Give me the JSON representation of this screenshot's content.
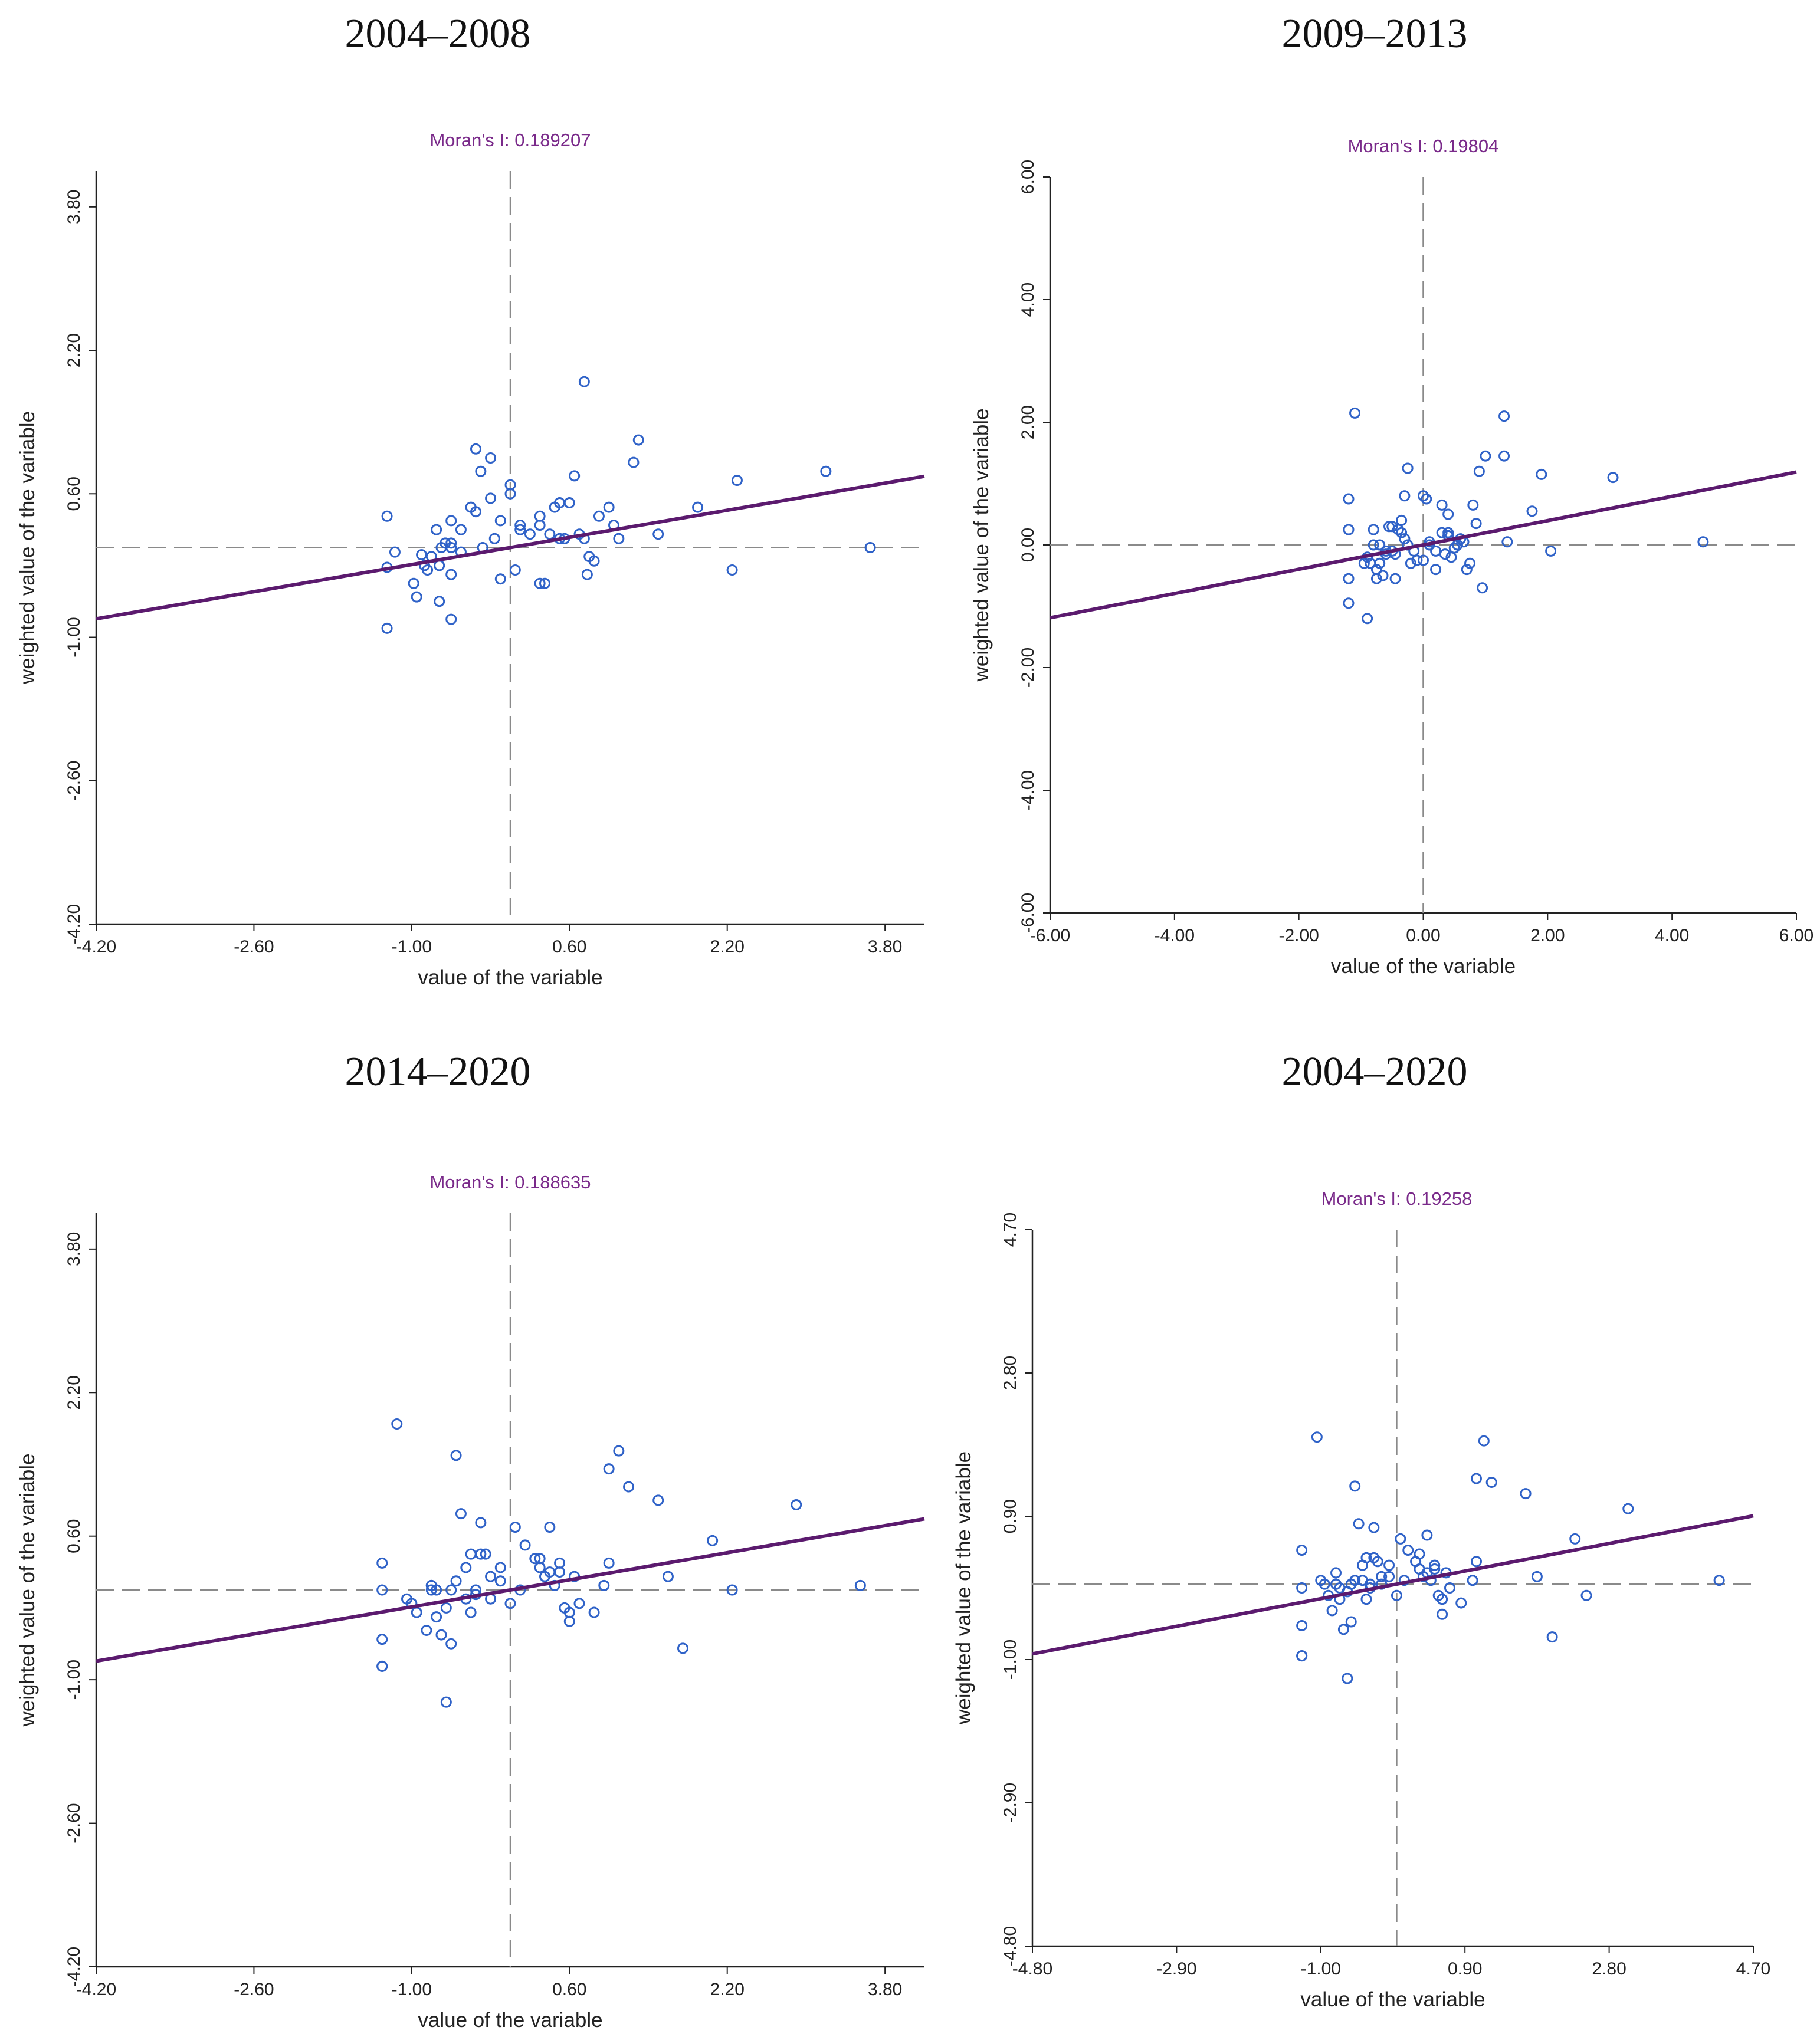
{
  "chart_data": [
    {
      "type": "scatter",
      "title": "2004–2008",
      "annotation": "Moran's I: 0.189207",
      "xlabel": "value of the variable",
      "ylabel": "weighted value of the variable",
      "xlim": [
        -4.2,
        4.2
      ],
      "ylim": [
        -4.2,
        4.2
      ],
      "xticks": [
        "-4.20",
        "-2.60",
        "-1.00",
        "0.60",
        "2.20",
        "3.80"
      ],
      "yticks": [
        "-4.20",
        "-2.60",
        "-1.00",
        "0.60",
        "2.20",
        "3.80"
      ],
      "slope": 0.189207,
      "colors": {
        "points": "#2f62c8",
        "fit": "#5b1a6e",
        "ref": "#8a8a8a"
      },
      "x": [
        -1.25,
        -0.98,
        -1.25,
        -1.25,
        -0.72,
        -1.17,
        -0.6,
        -0.9,
        -0.6,
        -0.84,
        -0.72,
        -0.6,
        -0.5,
        -0.75,
        -0.87,
        -0.5,
        -0.6,
        -0.7,
        -0.8,
        -0.95,
        -0.66,
        -0.6,
        -0.28,
        -0.16,
        -0.35,
        -0.1,
        -0.2,
        -0.0,
        0.2,
        0.1,
        0.3,
        0.1,
        0.05,
        0.4,
        0.3,
        0.5,
        0.55,
        0.45,
        0.7,
        0.6,
        0.75,
        0.78,
        0.8,
        0.85,
        0.9,
        1.0,
        1.05,
        1.1,
        0.75,
        1.5,
        1.9,
        2.3,
        2.25,
        3.2,
        3.65,
        0.5,
        1.25,
        1.3,
        -0.35,
        -0.2,
        -0.4,
        -0.3,
        0.0,
        0.3,
        -0.1,
        0.35,
        0.65
      ],
      "y": [
        -0.9,
        -0.4,
        -0.22,
        0.35,
        -0.6,
        -0.05,
        -0.8,
        -0.08,
        -0.3,
        -0.25,
        -0.2,
        0.0,
        -0.05,
        0.2,
        -0.2,
        0.2,
        0.3,
        0.0,
        -0.1,
        -0.55,
        0.05,
        0.05,
        0.0,
        0.1,
        0.4,
        0.3,
        0.55,
        0.6,
        0.15,
        0.25,
        0.25,
        0.2,
        -0.25,
        0.15,
        0.35,
        0.1,
        0.1,
        0.45,
        0.15,
        0.5,
        0.1,
        -0.3,
        -0.1,
        -0.15,
        0.35,
        0.45,
        0.25,
        0.1,
        1.85,
        0.15,
        0.45,
        0.75,
        -0.25,
        0.85,
        0.0,
        0.5,
        0.95,
        1.2,
        1.1,
        1.0,
        0.45,
        0.85,
        0.7,
        -0.4,
        -0.35,
        -0.4,
        0.8
      ]
    },
    {
      "type": "scatter",
      "title": "2009–2013",
      "annotation": "Moran's I: 0.19804",
      "xlabel": "value of the variable",
      "ylabel": "weighted value of the variable",
      "xlim": [
        -6.0,
        6.0
      ],
      "ylim": [
        -6.0,
        6.0
      ],
      "xticks": [
        "-6.00",
        "-4.00",
        "-2.00",
        "0.00",
        "2.00",
        "4.00",
        "6.00"
      ],
      "yticks": [
        "-6.00",
        "-4.00",
        "-2.00",
        "0.00",
        "2.00",
        "4.00",
        "6.00"
      ],
      "slope": 0.19804,
      "colors": {
        "points": "#2f62c8",
        "fit": "#5b1a6e",
        "ref": "#8a8a8a"
      },
      "x": [
        -1.1,
        -1.2,
        -1.2,
        -1.2,
        -1.2,
        -0.9,
        -0.85,
        -0.95,
        -0.8,
        -0.75,
        -0.7,
        -0.65,
        -0.6,
        -0.55,
        -0.5,
        -0.45,
        -0.4,
        -0.35,
        -0.3,
        -0.25,
        -0.2,
        -0.15,
        -0.1,
        0.0,
        0.05,
        0.1,
        0.2,
        0.3,
        0.35,
        0.4,
        0.4,
        0.45,
        0.5,
        0.55,
        0.6,
        0.65,
        0.7,
        0.75,
        0.8,
        0.9,
        1.0,
        1.3,
        1.35,
        1.75,
        2.05,
        1.9,
        3.05,
        4.5,
        -0.3,
        -0.25,
        0.0,
        0.1,
        0.2,
        0.3,
        0.4,
        0.95,
        1.3,
        -0.75,
        -0.8,
        -0.9,
        -0.45,
        -0.5,
        -0.35,
        -0.6,
        -0.7,
        0.85,
        0.4
      ],
      "y": [
        2.15,
        0.75,
        0.25,
        -0.55,
        -0.95,
        -1.2,
        -0.3,
        -0.3,
        0.0,
        -0.4,
        0.0,
        -0.5,
        -0.1,
        0.3,
        -0.1,
        -0.15,
        0.25,
        0.4,
        0.1,
        0.0,
        -0.3,
        -0.1,
        -0.25,
        0.8,
        0.75,
        0.0,
        -0.4,
        0.65,
        -0.15,
        0.15,
        0.2,
        -0.2,
        -0.05,
        0.0,
        0.1,
        0.05,
        -0.4,
        -0.3,
        0.65,
        1.2,
        1.45,
        2.1,
        0.05,
        0.55,
        -0.1,
        1.15,
        1.1,
        0.05,
        0.8,
        1.25,
        -0.25,
        0.05,
        -0.1,
        0.2,
        0.5,
        -0.7,
        1.45,
        -0.55,
        0.25,
        -0.2,
        -0.55,
        0.3,
        0.2,
        -0.15,
        -0.3,
        0.35,
        0.15
      ]
    },
    {
      "type": "scatter",
      "title": "2014–2020",
      "annotation": "Moran's I: 0.188635",
      "xlabel": "value of the variable",
      "ylabel": "weighted value of the variable",
      "xlim": [
        -4.2,
        4.2
      ],
      "ylim": [
        -4.2,
        4.2
      ],
      "xticks": [
        "-4.20",
        "-2.60",
        "-1.00",
        "0.60",
        "2.20",
        "3.80"
      ],
      "yticks": [
        "-4.20",
        "-2.60",
        "-1.00",
        "0.60",
        "2.20",
        "3.80"
      ],
      "slope": 0.188635,
      "colors": {
        "points": "#2f62c8",
        "fit": "#5b1a6e",
        "ref": "#8a8a8a"
      },
      "x": [
        -1.3,
        -1.3,
        -1.3,
        -1.3,
        -1.3,
        -1.15,
        -1.05,
        -1.0,
        -0.95,
        -0.85,
        -0.8,
        -0.8,
        -0.75,
        -0.7,
        -0.65,
        -0.6,
        -0.55,
        -0.5,
        -0.45,
        -0.4,
        -0.4,
        -0.35,
        -0.3,
        -0.25,
        -0.2,
        -0.1,
        0.0,
        0.05,
        0.1,
        0.15,
        0.25,
        0.3,
        0.35,
        0.4,
        0.45,
        0.5,
        0.55,
        0.6,
        0.65,
        0.7,
        0.85,
        0.95,
        1.0,
        1.1,
        1.2,
        1.5,
        1.6,
        1.75,
        2.05,
        2.25,
        2.9,
        3.55,
        -0.55,
        -0.45,
        -0.3,
        -0.75,
        -0.65,
        0.3,
        0.4,
        0.6,
        -0.2,
        -0.35,
        1.0,
        -0.8,
        -0.1,
        -0.6,
        0.5
      ],
      "y": [
        -0.85,
        -0.85,
        -0.55,
        0.0,
        0.3,
        1.85,
        -0.1,
        -0.15,
        -0.25,
        -0.45,
        0.05,
        0.05,
        0.0,
        -0.5,
        -0.2,
        -0.6,
        1.5,
        0.85,
        -0.1,
        0.4,
        -0.25,
        -0.05,
        0.4,
        0.4,
        0.15,
        0.25,
        -0.15,
        0.7,
        0.0,
        0.5,
        0.35,
        0.35,
        0.15,
        0.7,
        0.05,
        0.2,
        -0.2,
        -0.25,
        0.15,
        -0.15,
        -0.25,
        0.05,
        1.35,
        1.55,
        1.15,
        1.0,
        0.15,
        -0.65,
        0.55,
        0.0,
        0.95,
        0.05,
        0.1,
        0.25,
        0.75,
        -0.3,
        -1.25,
        0.25,
        0.2,
        -0.35,
        -0.1,
        0.0,
        0.3,
        0.0,
        0.1,
        0.0,
        0.3
      ]
    },
    {
      "type": "scatter",
      "title": "2004–2020",
      "annotation": "Moran's I: 0.19258",
      "xlabel": "value of the variable",
      "ylabel": "weighted value of the variable",
      "xlim": [
        -4.8,
        4.7
      ],
      "ylim": [
        -4.8,
        4.7
      ],
      "xticks": [
        "-4.80",
        "-2.90",
        "-1.00",
        "0.90",
        "2.80",
        "4.70"
      ],
      "yticks": [
        "-4.80",
        "-2.90",
        "-1.00",
        "0.90",
        "2.80",
        "4.70"
      ],
      "slope": 0.19258,
      "colors": {
        "points": "#2f62c8",
        "fit": "#5b1a6e",
        "ref": "#8a8a8a"
      },
      "x": [
        -1.25,
        -1.25,
        -1.25,
        -1.25,
        -1.25,
        -1.05,
        -1.0,
        -0.95,
        -0.9,
        -0.85,
        -0.8,
        -0.8,
        -0.75,
        -0.7,
        -0.65,
        -0.6,
        -0.55,
        -0.5,
        -0.45,
        -0.4,
        -0.4,
        -0.35,
        -0.3,
        -0.25,
        -0.2,
        -0.1,
        0.0,
        0.05,
        0.1,
        0.15,
        0.25,
        0.3,
        0.35,
        0.4,
        0.45,
        0.5,
        0.55,
        0.6,
        0.65,
        0.7,
        0.85,
        1.0,
        1.05,
        1.15,
        1.25,
        1.7,
        1.85,
        2.05,
        2.35,
        2.5,
        3.05,
        4.25,
        -0.55,
        -0.45,
        -0.3,
        -0.75,
        -0.65,
        0.3,
        0.4,
        0.6,
        -0.2,
        -0.35,
        1.05,
        -0.8,
        -0.1,
        -0.6,
        0.5
      ],
      "y": [
        -0.95,
        -0.95,
        -0.55,
        -0.05,
        0.45,
        1.95,
        0.05,
        0.0,
        -0.15,
        -0.35,
        0.15,
        0.0,
        -0.05,
        -0.6,
        -0.1,
        -0.5,
        1.3,
        0.8,
        0.05,
        0.35,
        -0.2,
        -0.05,
        0.35,
        0.3,
        0.1,
        0.25,
        -0.15,
        0.6,
        0.05,
        0.45,
        0.3,
        0.4,
        0.1,
        0.65,
        0.05,
        0.2,
        -0.15,
        -0.2,
        0.15,
        -0.05,
        -0.25,
        0.05,
        1.4,
        1.9,
        1.35,
        1.2,
        0.1,
        -0.7,
        0.6,
        -0.15,
        1.0,
        0.05,
        0.05,
        0.25,
        0.75,
        -0.2,
        -1.25,
        0.2,
        0.15,
        -0.4,
        0.0,
        0.0,
        0.3,
        0.0,
        0.1,
        0.0,
        0.25
      ]
    }
  ]
}
